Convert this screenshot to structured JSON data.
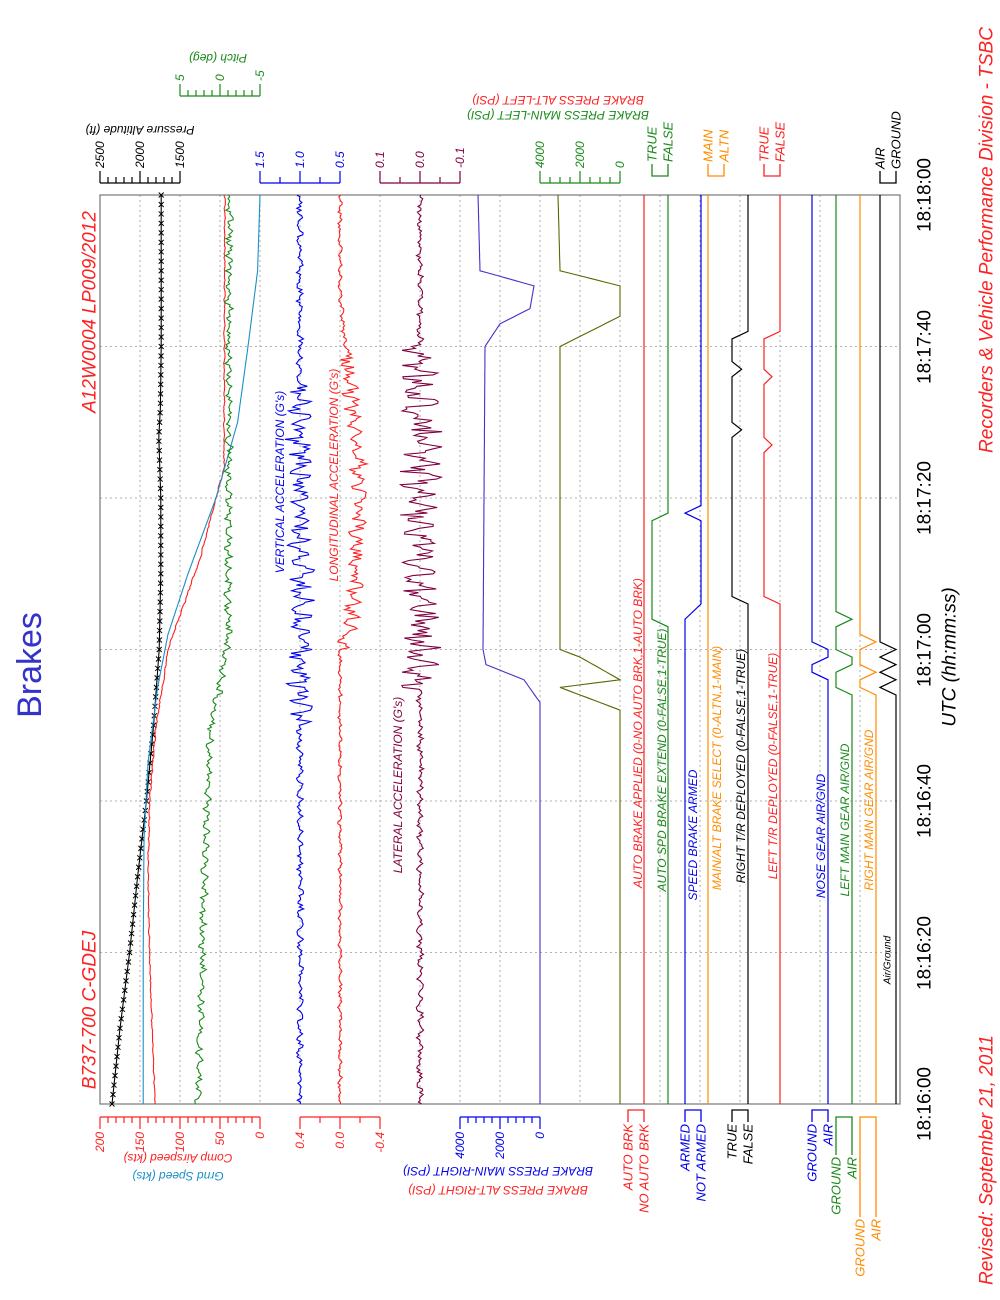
{
  "page": {
    "title": "Brakes",
    "aircraft": "B737-700 C-GDEJ",
    "occurrence": "A12W0004 LP009/2012",
    "revised": "Revised: September 21, 2011",
    "division": "Recorders & Vehicle Performance Division - TSBC",
    "colors": {
      "title": "#3333cc",
      "red": "#ff2020",
      "footer": "#ff2020"
    }
  },
  "chart_data": {
    "type": "line",
    "title": "Brakes",
    "xlabel": "UTC (hh:mm:ss)",
    "time_range_s": [
      0,
      120
    ],
    "time_ticks": [
      "18:16:00",
      "18:16:20",
      "18:16:40",
      "18:17:00",
      "18:17:20",
      "18:17:40",
      "18:18:00"
    ],
    "grid": true,
    "axes": {
      "airspeed": {
        "labels": [
          "200",
          "150",
          "100",
          "50",
          "0"
        ],
        "titles": [
          "Comp Airspeed (kts)",
          "Grnd Speed (kts)"
        ],
        "range": [
          200,
          0
        ]
      },
      "altitude": {
        "labels": [
          "2500",
          "2000",
          "1500"
        ],
        "title": "Pressure Altitude (ft)",
        "range": [
          2500,
          1500
        ]
      },
      "pitch": {
        "labels": [
          "5",
          "0",
          "-5"
        ],
        "title": "Pitch (deg)",
        "range": [
          5,
          -5
        ]
      },
      "vacc": {
        "labels": [
          "1.5",
          "1.0",
          "0.5"
        ],
        "range": [
          1.5,
          0.5
        ]
      },
      "lacc": {
        "labels": [
          "0.1",
          "0.0",
          "-0.1"
        ],
        "range": [
          0.1,
          -0.1
        ]
      },
      "long": {
        "labels": [
          "0.4",
          "0.0",
          "-0.4"
        ],
        "range": [
          0.4,
          -0.4
        ]
      },
      "bpr": {
        "labels": [
          "4000",
          "2000",
          "0"
        ],
        "titles": [
          "BRAKE PRESS MAIN-RIGHT (PSI)",
          "BRAKE PRESS ALT-RIGHT (PSI)"
        ],
        "range": [
          4000,
          0
        ]
      },
      "bpl": {
        "labels": [
          "4000",
          "2000",
          "0"
        ],
        "titles": [
          "BRAKE PRESS MAIN-LEFT (PSI)",
          "BRAKE PRESS ALT-LEFT (PSI)"
        ],
        "range": [
          4000,
          0
        ]
      },
      "autobrk": {
        "labels": [
          "AUTO BRK",
          "NO AUTO BRK"
        ]
      },
      "spdext": {
        "labels": [
          "TRUE",
          "FALSE"
        ]
      },
      "sbarm": {
        "labels": [
          "ARMED",
          "NOT ARMED"
        ]
      },
      "mainalt": {
        "labels": [
          "MAIN",
          "ALTN"
        ]
      },
      "rtr": {
        "labels": [
          "TRUE",
          "FALSE"
        ]
      },
      "ltr": {
        "labels": [
          "TRUE",
          "FALSE"
        ]
      },
      "nose": {
        "labels": [
          "GROUND",
          "AIR"
        ]
      },
      "lmain": {
        "labels": [
          "GROUND",
          "AIR"
        ]
      },
      "rmain": {
        "labels": [
          "GROUND",
          "AIR"
        ]
      },
      "airgnd": {
        "labels": [
          "AIR",
          "GROUND"
        ]
      }
    },
    "series": [
      {
        "key": "alt",
        "name": "Pressure Altitude (ft)",
        "axis": "altitude",
        "color": "#000000",
        "markers": true,
        "noise": 0,
        "points": [
          [
            0,
            2350
          ],
          [
            10,
            2250
          ],
          [
            20,
            2130
          ],
          [
            30,
            2030
          ],
          [
            40,
            1920
          ],
          [
            50,
            1830
          ],
          [
            60,
            1760
          ],
          [
            70,
            1740
          ],
          [
            80,
            1740
          ],
          [
            88,
            1765
          ],
          [
            92,
            1745
          ],
          [
            100,
            1735
          ],
          [
            120,
            1735
          ]
        ]
      },
      {
        "key": "cas",
        "name": "Comp Airspeed (kts)",
        "axis": "airspeed",
        "color": "#ff2020",
        "noise": 0.6,
        "points": [
          [
            0,
            131
          ],
          [
            10,
            135
          ],
          [
            20,
            138
          ],
          [
            30,
            140
          ],
          [
            40,
            138
          ],
          [
            50,
            130
          ],
          [
            55,
            122
          ],
          [
            60,
            115
          ],
          [
            66,
            95
          ],
          [
            72,
            75
          ],
          [
            80,
            55
          ],
          [
            84,
            45
          ],
          [
            120,
            44
          ]
        ]
      },
      {
        "key": "gs",
        "name": "Grnd Speed (kts)",
        "axis": "airspeed",
        "color": "#1a8fc8",
        "noise": 0,
        "points": [
          [
            0,
            146
          ],
          [
            20,
            146
          ],
          [
            35,
            145
          ],
          [
            45,
            140
          ],
          [
            55,
            128
          ],
          [
            62,
            115
          ],
          [
            70,
            90
          ],
          [
            80,
            55
          ],
          [
            90,
            28
          ],
          [
            100,
            15
          ],
          [
            110,
            3
          ],
          [
            120,
            0
          ]
        ]
      },
      {
        "key": "pitch",
        "name": "Pitch (deg)",
        "axis": "pitch",
        "color": "#1a8a1a",
        "noise": 0.35,
        "points": [
          [
            0,
            2.8
          ],
          [
            10,
            2.5
          ],
          [
            20,
            2.2
          ],
          [
            30,
            2.0
          ],
          [
            40,
            1.5
          ],
          [
            50,
            1.2
          ],
          [
            55,
            0
          ],
          [
            58,
            -0.5
          ],
          [
            62,
            -1
          ],
          [
            120,
            -1.2
          ]
        ]
      },
      {
        "key": "vacc",
        "name": "VERTICAL ACCELERATION (G's)",
        "axis": "vacc",
        "color": "#0000ee",
        "noise": 0.03,
        "noise_burst": [
          50,
          95,
          0.12
        ],
        "points": [
          [
            0,
            1.0
          ],
          [
            120,
            1.0
          ]
        ]
      },
      {
        "key": "long",
        "name": "LONGITUDINAL ACCELERATION (G's)",
        "axis": "long",
        "color": "#ff2020",
        "noise": 0.015,
        "noise_burst": [
          60,
          100,
          0.06
        ],
        "points": [
          [
            0,
            0
          ],
          [
            60,
            0
          ],
          [
            62,
            -0.1
          ],
          [
            70,
            -0.15
          ],
          [
            80,
            -0.2
          ],
          [
            90,
            -0.15
          ],
          [
            100,
            -0.05
          ],
          [
            105,
            -0.02
          ],
          [
            106,
            0
          ],
          [
            120,
            0
          ]
        ]
      },
      {
        "key": "lat",
        "name": "LATERAL ACCELERATION (G's)",
        "axis": "lacc",
        "color": "#800040",
        "noise": 0.006,
        "noise_burst": [
          55,
          100,
          0.035
        ],
        "points": [
          [
            0,
            0
          ],
          [
            120,
            0
          ]
        ]
      },
      {
        "key": "bpr",
        "name": "BRAKE PRESS MAIN-RIGHT (PSI)",
        "axis": "bpr",
        "color": "#4b2ccc",
        "noise": 0,
        "points": [
          [
            0,
            0
          ],
          [
            53,
            0
          ],
          [
            56,
            800
          ],
          [
            58,
            2700
          ],
          [
            60,
            2850
          ],
          [
            100,
            2750
          ],
          [
            103,
            2000
          ],
          [
            105,
            500
          ],
          [
            108,
            300
          ],
          [
            110,
            3000
          ],
          [
            120,
            3100
          ]
        ]
      },
      {
        "key": "bpl",
        "name": "BRAKE PRESS MAIN-LEFT (PSI)",
        "axis": "bpl",
        "color": "#556b00",
        "noise": 0,
        "points": [
          [
            0,
            0
          ],
          [
            52,
            0
          ],
          [
            55,
            3000
          ],
          [
            56,
            0
          ],
          [
            59,
            2000
          ],
          [
            60,
            3000
          ],
          [
            100,
            3000
          ],
          [
            102,
            1500
          ],
          [
            104,
            0
          ],
          [
            108,
            0
          ],
          [
            110,
            3000
          ],
          [
            120,
            3100
          ]
        ]
      }
    ],
    "discretes": [
      {
        "key": "autobrk",
        "name": "AUTO BRAKE APPLIED (0-NO AUTO BRK,1-AUTO BRK)",
        "color": "#ff2020",
        "points": [
          [
            0,
            0
          ],
          [
            120,
            0
          ]
        ]
      },
      {
        "key": "spdext",
        "name": "AUTO SPD BRAKE EXTEND (0-FALSE,1-TRUE)",
        "color": "#1a8a1a",
        "points": [
          [
            0,
            0
          ],
          [
            63,
            0
          ],
          [
            64,
            1
          ],
          [
            77,
            1
          ],
          [
            78,
            0
          ],
          [
            120,
            0
          ]
        ]
      },
      {
        "key": "sbarm",
        "name": "SPEED BRAKE ARMED",
        "color": "#0000ee",
        "points": [
          [
            0,
            1
          ],
          [
            64,
            1
          ],
          [
            66,
            0
          ],
          [
            77,
            0
          ],
          [
            78,
            1
          ],
          [
            79,
            0
          ],
          [
            120,
            0
          ]
        ]
      },
      {
        "key": "mainalt",
        "name": "MAIN/ALT BRAKE SELECT (0-ALTN,1-MAIN)",
        "color": "#ff8c00",
        "points": [
          [
            0,
            1
          ],
          [
            120,
            1
          ]
        ]
      },
      {
        "key": "rtr",
        "name": "RIGHT T/R DEPLOYED (0-FALSE,1-TRUE)",
        "color": "#000000",
        "points": [
          [
            0,
            0
          ],
          [
            66,
            0
          ],
          [
            67,
            1
          ],
          [
            88,
            1
          ],
          [
            89,
            0.4
          ],
          [
            90,
            1
          ],
          [
            96,
            1
          ],
          [
            97,
            0.4
          ],
          [
            98,
            1
          ],
          [
            101,
            1
          ],
          [
            102,
            0
          ],
          [
            120,
            0
          ]
        ]
      },
      {
        "key": "ltr",
        "name": "LEFT T/R DEPLOYED (0-FALSE,1-TRUE)",
        "color": "#ff2020",
        "points": [
          [
            0,
            0
          ],
          [
            66,
            0
          ],
          [
            67,
            1
          ],
          [
            86,
            1
          ],
          [
            87,
            0.5
          ],
          [
            88,
            1
          ],
          [
            95,
            1
          ],
          [
            96,
            0.5
          ],
          [
            97,
            1
          ],
          [
            101,
            1
          ],
          [
            102,
            0
          ],
          [
            120,
            0
          ]
        ]
      },
      {
        "key": "nose",
        "name": "NOSE GEAR AIR/GND",
        "color": "#0000ee",
        "points": [
          [
            0,
            1
          ],
          [
            56,
            1
          ],
          [
            57,
            0
          ],
          [
            58,
            0
          ],
          [
            59,
            1
          ],
          [
            60,
            1
          ],
          [
            61,
            0
          ],
          [
            120,
            0
          ]
        ]
      },
      {
        "key": "lmain",
        "name": "LEFT MAIN GEAR AIR/GND",
        "color": "#1a8a1a",
        "points": [
          [
            0,
            1
          ],
          [
            54,
            1
          ],
          [
            55,
            0
          ],
          [
            57,
            0
          ],
          [
            58,
            1
          ],
          [
            59,
            1
          ],
          [
            60,
            0
          ],
          [
            63,
            0
          ],
          [
            64,
            1
          ],
          [
            65,
            0
          ],
          [
            120,
            0
          ]
        ]
      },
      {
        "key": "rmain",
        "name": "RIGHT MAIN GEAR AIR/GND",
        "color": "#ff8c00",
        "points": [
          [
            0,
            1
          ],
          [
            54,
            1
          ],
          [
            55,
            0
          ],
          [
            56,
            0
          ],
          [
            57,
            1
          ],
          [
            58,
            0
          ],
          [
            60,
            0
          ],
          [
            61,
            1
          ],
          [
            62,
            0
          ],
          [
            120,
            0
          ]
        ]
      },
      {
        "key": "airgnd",
        "name": "Air/Ground",
        "color": "#000000",
        "points": [
          [
            0,
            0
          ],
          [
            54,
            0
          ],
          [
            55,
            1
          ],
          [
            56,
            0
          ],
          [
            57,
            1
          ],
          [
            58,
            0
          ],
          [
            59,
            1
          ],
          [
            60,
            0
          ],
          [
            61,
            1
          ],
          [
            120,
            1
          ]
        ]
      }
    ]
  }
}
